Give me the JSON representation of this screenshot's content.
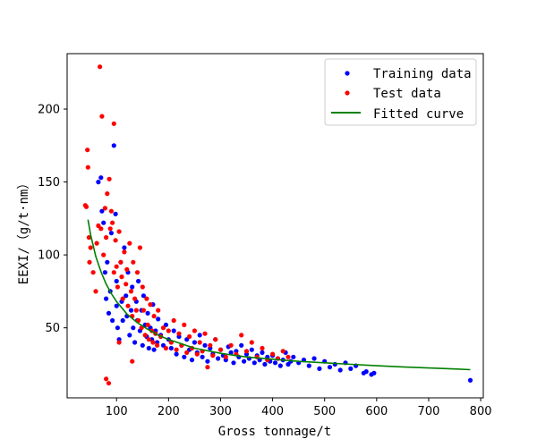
{
  "chart_data": {
    "type": "scatter",
    "title": "",
    "xlabel": "Gross tonnage/t",
    "ylabel": "EEXI/（g/t·nm）",
    "xlim": [
      5,
      805
    ],
    "ylim": [
      2,
      238
    ],
    "xticks": [
      100,
      200,
      300,
      400,
      500,
      600,
      700,
      800
    ],
    "yticks": [
      50,
      100,
      150,
      200
    ],
    "grid": false,
    "legend_position": "top-right",
    "colors": {
      "training": "#0000ff",
      "test": "#ff0000",
      "fit": "#008000"
    },
    "series": [
      {
        "name": "Training data",
        "type": "scatter",
        "points": [
          [
            65,
            150
          ],
          [
            70,
            153
          ],
          [
            72,
            130
          ],
          [
            75,
            122
          ],
          [
            78,
            88
          ],
          [
            80,
            70
          ],
          [
            82,
            95
          ],
          [
            85,
            60
          ],
          [
            88,
            75
          ],
          [
            90,
            115
          ],
          [
            92,
            55
          ],
          [
            95,
            175
          ],
          [
            98,
            128
          ],
          [
            100,
            82
          ],
          [
            100,
            65
          ],
          [
            102,
            50
          ],
          [
            105,
            42
          ],
          [
            108,
            95
          ],
          [
            110,
            68
          ],
          [
            112,
            55
          ],
          [
            115,
            105
          ],
          [
            118,
            72
          ],
          [
            120,
            58
          ],
          [
            122,
            88
          ],
          [
            125,
            45
          ],
          [
            128,
            62
          ],
          [
            130,
            78
          ],
          [
            132,
            50
          ],
          [
            135,
            40
          ],
          [
            138,
            68
          ],
          [
            140,
            55
          ],
          [
            142,
            82
          ],
          [
            145,
            48
          ],
          [
            148,
            62
          ],
          [
            150,
            38
          ],
          [
            152,
            72
          ],
          [
            155,
            52
          ],
          [
            158,
            44
          ],
          [
            160,
            60
          ],
          [
            162,
            36
          ],
          [
            165,
            50
          ],
          [
            168,
            42
          ],
          [
            170,
            66
          ],
          [
            172,
            35
          ],
          [
            175,
            48
          ],
          [
            178,
            40
          ],
          [
            180,
            56
          ],
          [
            185,
            45
          ],
          [
            190,
            38
          ],
          [
            195,
            52
          ],
          [
            200,
            42
          ],
          [
            205,
            36
          ],
          [
            210,
            48
          ],
          [
            215,
            32
          ],
          [
            220,
            44
          ],
          [
            225,
            38
          ],
          [
            230,
            30
          ],
          [
            235,
            42
          ],
          [
            240,
            35
          ],
          [
            245,
            28
          ],
          [
            250,
            40
          ],
          [
            255,
            33
          ],
          [
            260,
            45
          ],
          [
            265,
            30
          ],
          [
            270,
            38
          ],
          [
            275,
            27
          ],
          [
            280,
            36
          ],
          [
            285,
            32
          ],
          [
            290,
            42
          ],
          [
            295,
            29
          ],
          [
            300,
            35
          ],
          [
            305,
            31
          ],
          [
            310,
            28
          ],
          [
            315,
            37
          ],
          [
            320,
            33
          ],
          [
            325,
            26
          ],
          [
            330,
            34
          ],
          [
            335,
            30
          ],
          [
            340,
            38
          ],
          [
            345,
            27
          ],
          [
            350,
            32
          ],
          [
            355,
            29
          ],
          [
            360,
            35
          ],
          [
            365,
            26
          ],
          [
            370,
            31
          ],
          [
            375,
            28
          ],
          [
            380,
            33
          ],
          [
            385,
            25
          ],
          [
            390,
            30
          ],
          [
            395,
            27
          ],
          [
            400,
            31
          ],
          [
            405,
            26
          ],
          [
            410,
            29
          ],
          [
            415,
            24
          ],
          [
            420,
            28
          ],
          [
            425,
            33
          ],
          [
            430,
            25
          ],
          [
            435,
            27
          ],
          [
            440,
            30
          ],
          [
            450,
            26
          ],
          [
            460,
            28
          ],
          [
            470,
            24
          ],
          [
            480,
            29
          ],
          [
            490,
            22
          ],
          [
            500,
            27
          ],
          [
            510,
            23
          ],
          [
            520,
            25
          ],
          [
            530,
            21
          ],
          [
            540,
            26
          ],
          [
            550,
            22
          ],
          [
            560,
            24
          ],
          [
            575,
            19
          ],
          [
            580,
            20
          ],
          [
            590,
            18
          ],
          [
            595,
            19
          ],
          [
            780,
            14
          ]
        ]
      },
      {
        "name": "Test data",
        "type": "scatter",
        "points": [
          [
            40,
            134
          ],
          [
            42,
            133
          ],
          [
            44,
            172
          ],
          [
            45,
            160
          ],
          [
            47,
            112
          ],
          [
            48,
            95
          ],
          [
            50,
            105
          ],
          [
            55,
            88
          ],
          [
            60,
            75
          ],
          [
            62,
            108
          ],
          [
            65,
            120
          ],
          [
            68,
            229
          ],
          [
            70,
            118
          ],
          [
            72,
            195
          ],
          [
            75,
            100
          ],
          [
            78,
            132
          ],
          [
            80,
            112
          ],
          [
            80,
            15
          ],
          [
            82,
            142
          ],
          [
            85,
            12
          ],
          [
            86,
            152
          ],
          [
            88,
            118
          ],
          [
            90,
            130
          ],
          [
            92,
            122
          ],
          [
            95,
            190
          ],
          [
            95,
            88
          ],
          [
            98,
            110
          ],
          [
            100,
            92
          ],
          [
            102,
            78
          ],
          [
            105,
            116
          ],
          [
            108,
            95
          ],
          [
            110,
            85
          ],
          [
            112,
            70
          ],
          [
            115,
            102
          ],
          [
            118,
            80
          ],
          [
            120,
            90
          ],
          [
            122,
            65
          ],
          [
            125,
            108
          ],
          [
            128,
            75
          ],
          [
            130,
            58
          ],
          [
            132,
            95
          ],
          [
            135,
            70
          ],
          [
            138,
            62
          ],
          [
            140,
            88
          ],
          [
            142,
            55
          ],
          [
            145,
            105
          ],
          [
            148,
            50
          ],
          [
            150,
            78
          ],
          [
            152,
            62
          ],
          [
            155,
            45
          ],
          [
            158,
            70
          ],
          [
            160,
            52
          ],
          [
            162,
            42
          ],
          [
            165,
            66
          ],
          [
            168,
            48
          ],
          [
            170,
            40
          ],
          [
            172,
            58
          ],
          [
            175,
            46
          ],
          [
            178,
            38
          ],
          [
            180,
            62
          ],
          [
            185,
            44
          ],
          [
            190,
            50
          ],
          [
            195,
            36
          ],
          [
            200,
            48
          ],
          [
            205,
            40
          ],
          [
            210,
            55
          ],
          [
            215,
            35
          ],
          [
            220,
            46
          ],
          [
            225,
            38
          ],
          [
            230,
            52
          ],
          [
            235,
            33
          ],
          [
            240,
            44
          ],
          [
            245,
            36
          ],
          [
            250,
            48
          ],
          [
            255,
            32
          ],
          [
            260,
            40
          ],
          [
            265,
            34
          ],
          [
            270,
            46
          ],
          [
            275,
            23
          ],
          [
            280,
            38
          ],
          [
            285,
            31
          ],
          [
            290,
            42
          ],
          [
            300,
            35
          ],
          [
            310,
            30
          ],
          [
            320,
            38
          ],
          [
            330,
            32
          ],
          [
            340,
            45
          ],
          [
            350,
            34
          ],
          [
            360,
            40
          ],
          [
            370,
            30
          ],
          [
            380,
            36
          ],
          [
            390,
            28
          ],
          [
            400,
            32
          ],
          [
            410,
            29
          ],
          [
            420,
            34
          ],
          [
            430,
            30
          ],
          [
            130,
            27
          ],
          [
            105,
            40
          ]
        ]
      },
      {
        "name": "Fitted curve",
        "type": "line",
        "x": [
          45,
          50,
          60,
          70,
          80,
          90,
          100,
          120,
          140,
          160,
          180,
          200,
          250,
          300,
          350,
          400,
          450,
          500,
          550,
          600,
          650,
          700,
          750,
          780
        ],
        "y": [
          124.2,
          114.0,
          99.0,
          88.5,
          80.0,
          73.5,
          68.0,
          59.5,
          53.5,
          49.0,
          45.0,
          42.0,
          36.0,
          32.5,
          30.0,
          28.5,
          27.0,
          26.0,
          25.0,
          24.0,
          23.2,
          22.5,
          21.8,
          21.3
        ]
      }
    ]
  }
}
